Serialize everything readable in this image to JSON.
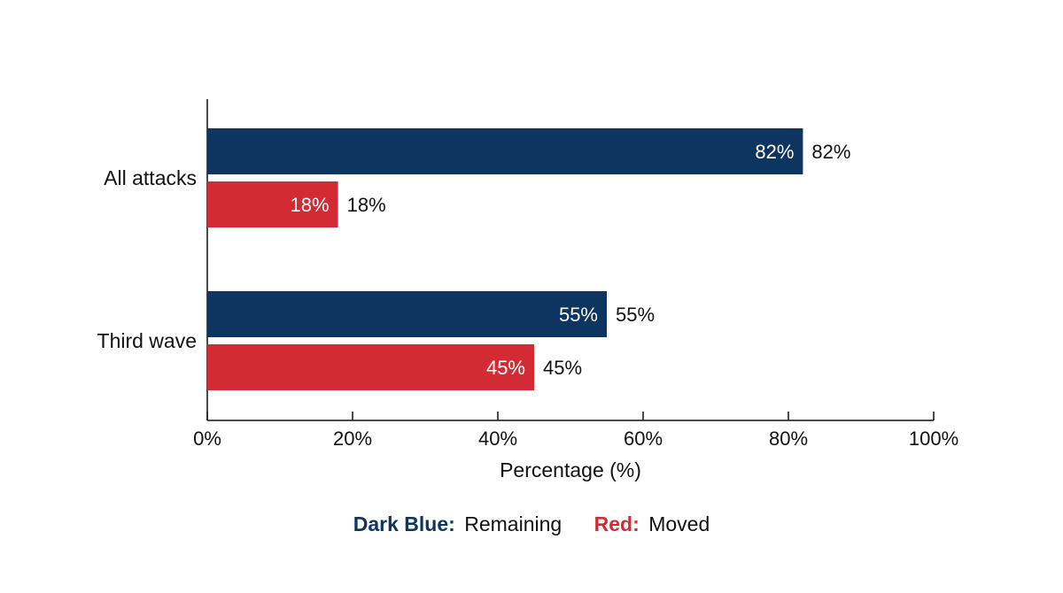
{
  "chart_data": {
    "type": "bar",
    "orientation": "horizontal",
    "categories": [
      "All attacks",
      "Third wave"
    ],
    "series": [
      {
        "name": "Remaining",
        "values": [
          82,
          55
        ],
        "color": "#0d3560"
      },
      {
        "name": "Moved",
        "values": [
          18,
          45
        ],
        "color": "#d22b33"
      }
    ],
    "value_suffix": "%",
    "xlabel": "Percentage (%)",
    "xlim": [
      0,
      100
    ],
    "xticks": [
      0,
      20,
      40,
      60,
      80,
      100
    ],
    "xtick_labels": [
      "0%",
      "20%",
      "40%",
      "60%",
      "80%",
      "100%"
    ],
    "grid": false,
    "legend_position": "bottom-center",
    "legend": [
      {
        "key": "Dark Blue:",
        "text": "Remaining",
        "color": "#0d3560"
      },
      {
        "key": "Red:",
        "text": "Moved",
        "color": "#d22b33"
      }
    ]
  }
}
